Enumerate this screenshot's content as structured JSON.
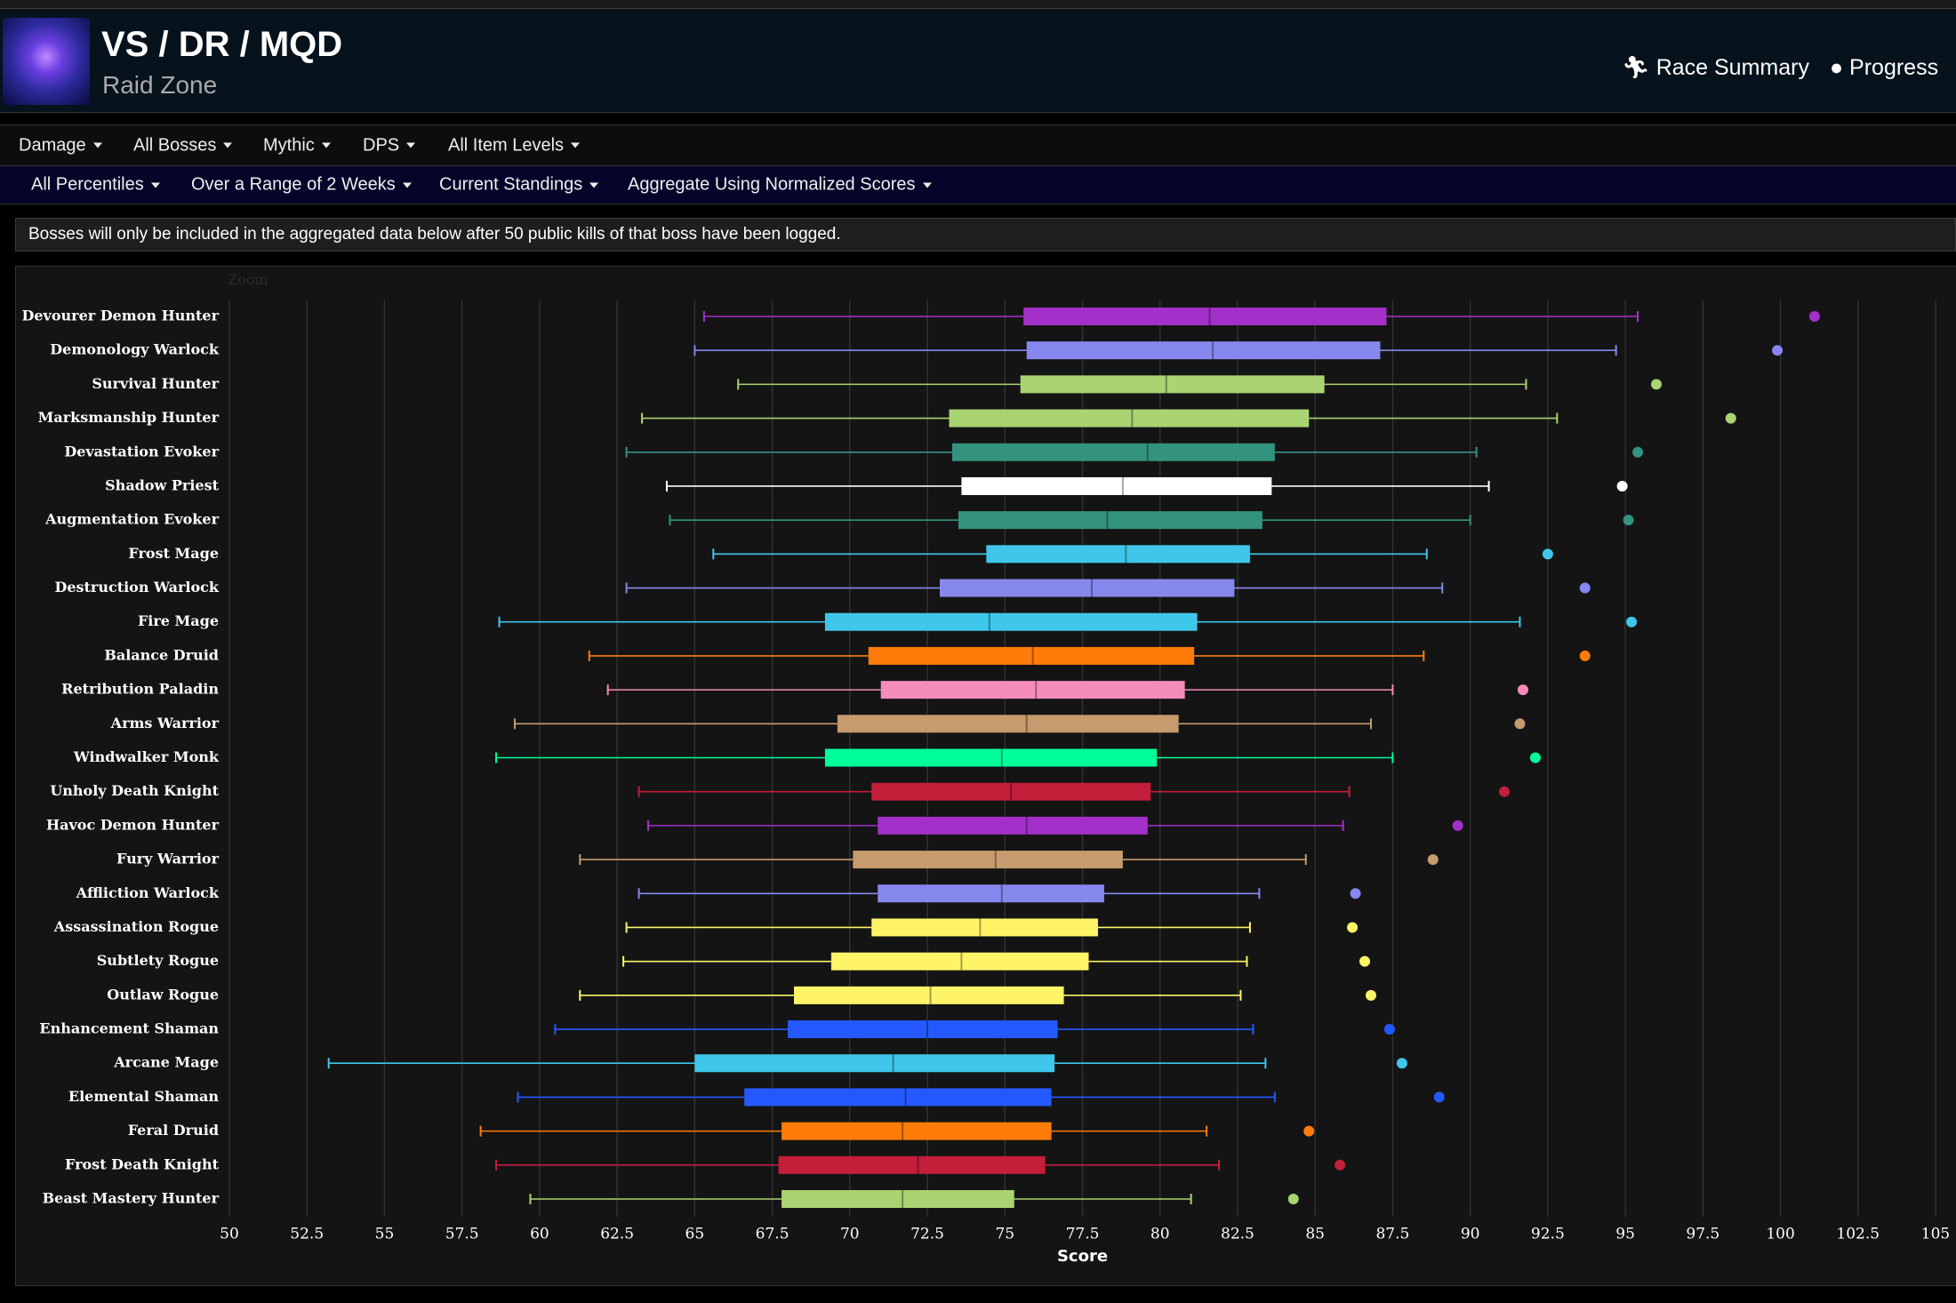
{
  "header": {
    "title": "VS / DR / MQD",
    "subtitle": "Raid Zone",
    "nav": [
      "Race Summary",
      "Progress"
    ]
  },
  "filters": {
    "row1": [
      "Damage",
      "All Bosses",
      "Mythic",
      "DPS",
      "All Item Levels"
    ],
    "row2": [
      "All Percentiles",
      "Over a Range of 2 Weeks",
      "Current Standings",
      "Aggregate Using Normalized Scores"
    ]
  },
  "notice": "Bosses will only be included in the aggregated data below after 50 public kills of that boss have been logged.",
  "chart_data": {
    "type": "boxplot",
    "zoom_label": "Zoom",
    "xlabel": "Score",
    "xlim": [
      50,
      105
    ],
    "xticks": [
      50,
      52.5,
      55,
      57.5,
      60,
      62.5,
      65,
      67.5,
      70,
      72.5,
      75,
      77.5,
      80,
      82.5,
      85,
      87.5,
      90,
      92.5,
      95,
      97.5,
      100,
      102.5,
      105
    ],
    "grid": true,
    "boxes": [
      {
        "name": "Devourer Demon Hunter",
        "color": "#a330c9",
        "low": 65.3,
        "q1": 75.6,
        "median": 81.6,
        "q3": 87.3,
        "high": 95.4,
        "outlier": 101.1
      },
      {
        "name": "Demonology Warlock",
        "color": "#8788ee",
        "low": 65.0,
        "q1": 75.7,
        "median": 81.7,
        "q3": 87.1,
        "high": 94.7,
        "outlier": 99.9
      },
      {
        "name": "Survival Hunter",
        "color": "#aad372",
        "low": 66.4,
        "q1": 75.5,
        "median": 80.2,
        "q3": 85.3,
        "high": 91.8,
        "outlier": 96.0
      },
      {
        "name": "Marksmanship Hunter",
        "color": "#aad372",
        "low": 63.3,
        "q1": 73.2,
        "median": 79.1,
        "q3": 84.8,
        "high": 92.8,
        "outlier": 98.4
      },
      {
        "name": "Devastation Evoker",
        "color": "#33937f",
        "low": 62.8,
        "q1": 73.3,
        "median": 79.6,
        "q3": 83.7,
        "high": 90.2,
        "outlier": 95.4
      },
      {
        "name": "Shadow Priest",
        "color": "#ffffff",
        "low": 64.1,
        "q1": 73.6,
        "median": 78.8,
        "q3": 83.6,
        "high": 90.6,
        "outlier": 94.9
      },
      {
        "name": "Augmentation Evoker",
        "color": "#33937f",
        "low": 64.2,
        "q1": 73.5,
        "median": 78.3,
        "q3": 83.3,
        "high": 90.0,
        "outlier": 95.1
      },
      {
        "name": "Frost Mage",
        "color": "#3fc7eb",
        "low": 65.6,
        "q1": 74.4,
        "median": 78.9,
        "q3": 82.9,
        "high": 88.6,
        "outlier": 92.5
      },
      {
        "name": "Destruction Warlock",
        "color": "#8788ee",
        "low": 62.8,
        "q1": 72.9,
        "median": 77.8,
        "q3": 82.4,
        "high": 89.1,
        "outlier": 93.7
      },
      {
        "name": "Fire Mage",
        "color": "#3fc7eb",
        "low": 58.7,
        "q1": 69.2,
        "median": 74.5,
        "q3": 81.2,
        "high": 91.6,
        "outlier": 95.2
      },
      {
        "name": "Balance Druid",
        "color": "#ff7c0a",
        "low": 61.6,
        "q1": 70.6,
        "median": 75.9,
        "q3": 81.1,
        "high": 88.5,
        "outlier": 93.7
      },
      {
        "name": "Retribution Paladin",
        "color": "#f48cba",
        "low": 62.2,
        "q1": 71.0,
        "median": 76.0,
        "q3": 80.8,
        "high": 87.5,
        "outlier": 91.7
      },
      {
        "name": "Arms Warrior",
        "color": "#c69b6d",
        "low": 59.2,
        "q1": 69.6,
        "median": 75.7,
        "q3": 80.6,
        "high": 86.8,
        "outlier": 91.6
      },
      {
        "name": "Windwalker Monk",
        "color": "#00ff98",
        "low": 58.6,
        "q1": 69.2,
        "median": 74.9,
        "q3": 79.9,
        "high": 87.5,
        "outlier": 92.1
      },
      {
        "name": "Unholy Death Knight",
        "color": "#c41e3a",
        "low": 63.2,
        "q1": 70.7,
        "median": 75.2,
        "q3": 79.7,
        "high": 86.1,
        "outlier": 91.1
      },
      {
        "name": "Havoc Demon Hunter",
        "color": "#a330c9",
        "low": 63.5,
        "q1": 70.9,
        "median": 75.7,
        "q3": 79.6,
        "high": 85.9,
        "outlier": 89.6
      },
      {
        "name": "Fury Warrior",
        "color": "#c69b6d",
        "low": 61.3,
        "q1": 70.1,
        "median": 74.7,
        "q3": 78.8,
        "high": 84.7,
        "outlier": 88.8
      },
      {
        "name": "Affliction Warlock",
        "color": "#8788ee",
        "low": 63.2,
        "q1": 70.9,
        "median": 74.9,
        "q3": 78.2,
        "high": 83.2,
        "outlier": 86.3
      },
      {
        "name": "Assassination Rogue",
        "color": "#fff468",
        "low": 62.8,
        "q1": 70.7,
        "median": 74.2,
        "q3": 78.0,
        "high": 82.9,
        "outlier": 86.2
      },
      {
        "name": "Subtlety Rogue",
        "color": "#fff468",
        "low": 62.7,
        "q1": 69.4,
        "median": 73.6,
        "q3": 77.7,
        "high": 82.8,
        "outlier": 86.6
      },
      {
        "name": "Outlaw Rogue",
        "color": "#fff468",
        "low": 61.3,
        "q1": 68.2,
        "median": 72.6,
        "q3": 76.9,
        "high": 82.6,
        "outlier": 86.8
      },
      {
        "name": "Enhancement Shaman",
        "color": "#2459ff",
        "low": 60.5,
        "q1": 68.0,
        "median": 72.5,
        "q3": 76.7,
        "high": 83.0,
        "outlier": 87.4
      },
      {
        "name": "Arcane Mage",
        "color": "#3fc7eb",
        "low": 53.2,
        "q1": 65.0,
        "median": 71.4,
        "q3": 76.6,
        "high": 83.4,
        "outlier": 87.8
      },
      {
        "name": "Elemental Shaman",
        "color": "#2459ff",
        "low": 59.3,
        "q1": 66.6,
        "median": 71.8,
        "q3": 76.5,
        "high": 83.7,
        "outlier": 89.0
      },
      {
        "name": "Feral Druid",
        "color": "#ff7c0a",
        "low": 58.1,
        "q1": 67.8,
        "median": 71.7,
        "q3": 76.5,
        "high": 81.5,
        "outlier": 84.8
      },
      {
        "name": "Frost Death Knight",
        "color": "#c41e3a",
        "low": 58.6,
        "q1": 67.7,
        "median": 72.2,
        "q3": 76.3,
        "high": 81.9,
        "outlier": 85.8
      },
      {
        "name": "Beast Mastery Hunter",
        "color": "#aad372",
        "low": 59.7,
        "q1": 67.8,
        "median": 71.7,
        "q3": 75.3,
        "high": 81.0,
        "outlier": 84.3
      }
    ]
  }
}
